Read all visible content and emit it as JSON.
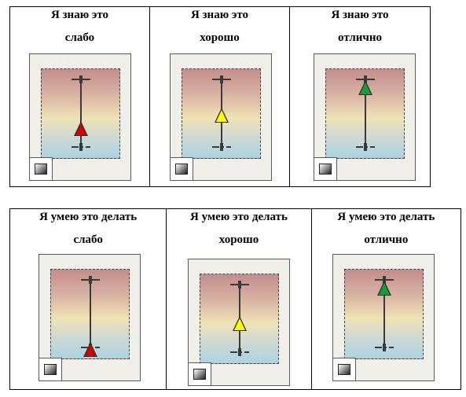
{
  "row1": {
    "cells": [
      {
        "line1": "Я знаю  это",
        "line2": "слабо",
        "level": 0.35,
        "color": "#d10000"
      },
      {
        "line1": "Я знаю  это",
        "line2": "хорошо",
        "level": 0.55,
        "color": "#ffff00"
      },
      {
        "line1": "Я знаю  это",
        "line2": "отлично",
        "level": 0.95,
        "color": "#1a9b3a"
      }
    ]
  },
  "row2": {
    "cells": [
      {
        "line1": "Я умею это делать",
        "line2": "слабо",
        "level": 0.05,
        "color": "#d10000"
      },
      {
        "line1": "Я умею это делать",
        "line2": "хорошо",
        "level": 0.5,
        "color": "#ffff00"
      },
      {
        "line1": "Я умею это делать",
        "line2": "отлично",
        "level": 0.95,
        "color": "#1a9b3a"
      }
    ]
  },
  "icons": {
    "marker": "triangle-marker-icon",
    "swatch": "gradient-swatch-icon"
  }
}
